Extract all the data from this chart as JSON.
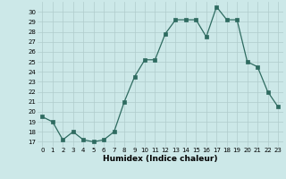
{
  "x": [
    0,
    1,
    2,
    3,
    4,
    5,
    6,
    7,
    8,
    9,
    10,
    11,
    12,
    13,
    14,
    15,
    16,
    17,
    18,
    19,
    20,
    21,
    22,
    23
  ],
  "y": [
    19.5,
    19.0,
    17.2,
    18.0,
    17.2,
    17.0,
    17.2,
    18.0,
    21.0,
    23.5,
    25.2,
    25.2,
    27.8,
    29.2,
    29.2,
    29.2,
    27.5,
    30.5,
    29.2,
    29.2,
    25.0,
    24.5,
    22.0,
    20.5
  ],
  "xlabel": "Humidex (Indice chaleur)",
  "ylim_min": 16.5,
  "ylim_max": 31.0,
  "xlim_min": -0.5,
  "xlim_max": 23.5,
  "yticks": [
    17,
    18,
    19,
    20,
    21,
    22,
    23,
    24,
    25,
    26,
    27,
    28,
    29,
    30
  ],
  "xticks": [
    0,
    1,
    2,
    3,
    4,
    5,
    6,
    7,
    8,
    9,
    10,
    11,
    12,
    13,
    14,
    15,
    16,
    17,
    18,
    19,
    20,
    21,
    22,
    23
  ],
  "line_color": "#2e6b60",
  "bg_color": "#cce8e8",
  "grid_color": "#b0cccc",
  "xlabel_fontsize": 6.5,
  "tick_fontsize": 5.0
}
